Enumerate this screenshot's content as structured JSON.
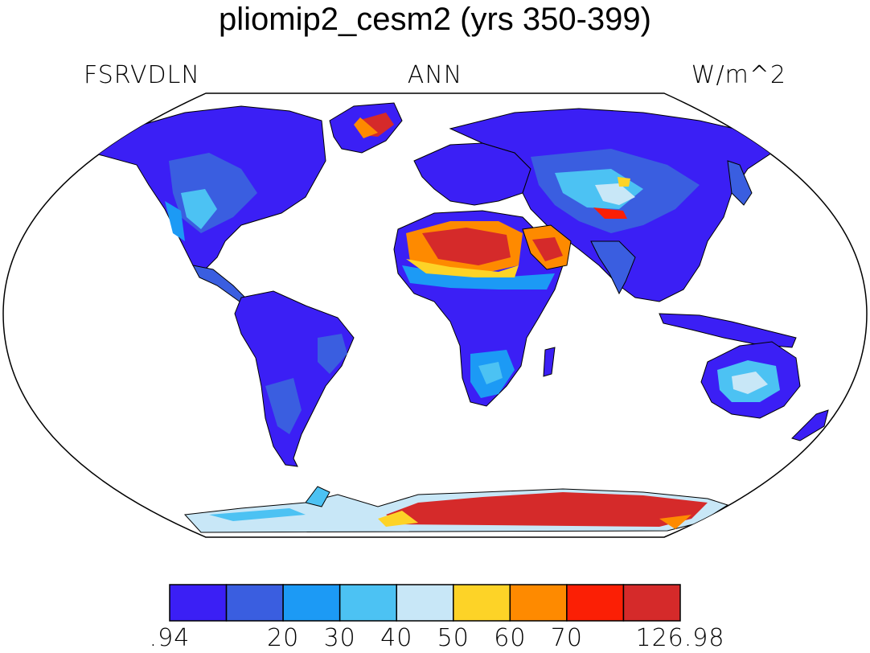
{
  "title": "pliomip2_cesm2 (yrs 350-399)",
  "variable": "FSRVDLN",
  "season": "ANN",
  "units": "W/m^2",
  "colorbar": {
    "colors": [
      "#3b1ff5",
      "#3a5ee0",
      "#1c9af5",
      "#4cc2f3",
      "#c8e7f7",
      "#fdd327",
      "#fe8a00",
      "#fb1f05",
      "#d52a2a"
    ],
    "tick_labels": [
      ".94",
      "20",
      "30",
      "40",
      "50",
      "60",
      "70",
      "126.98"
    ]
  },
  "map": {
    "land_color_base": "#3b1ff5"
  }
}
